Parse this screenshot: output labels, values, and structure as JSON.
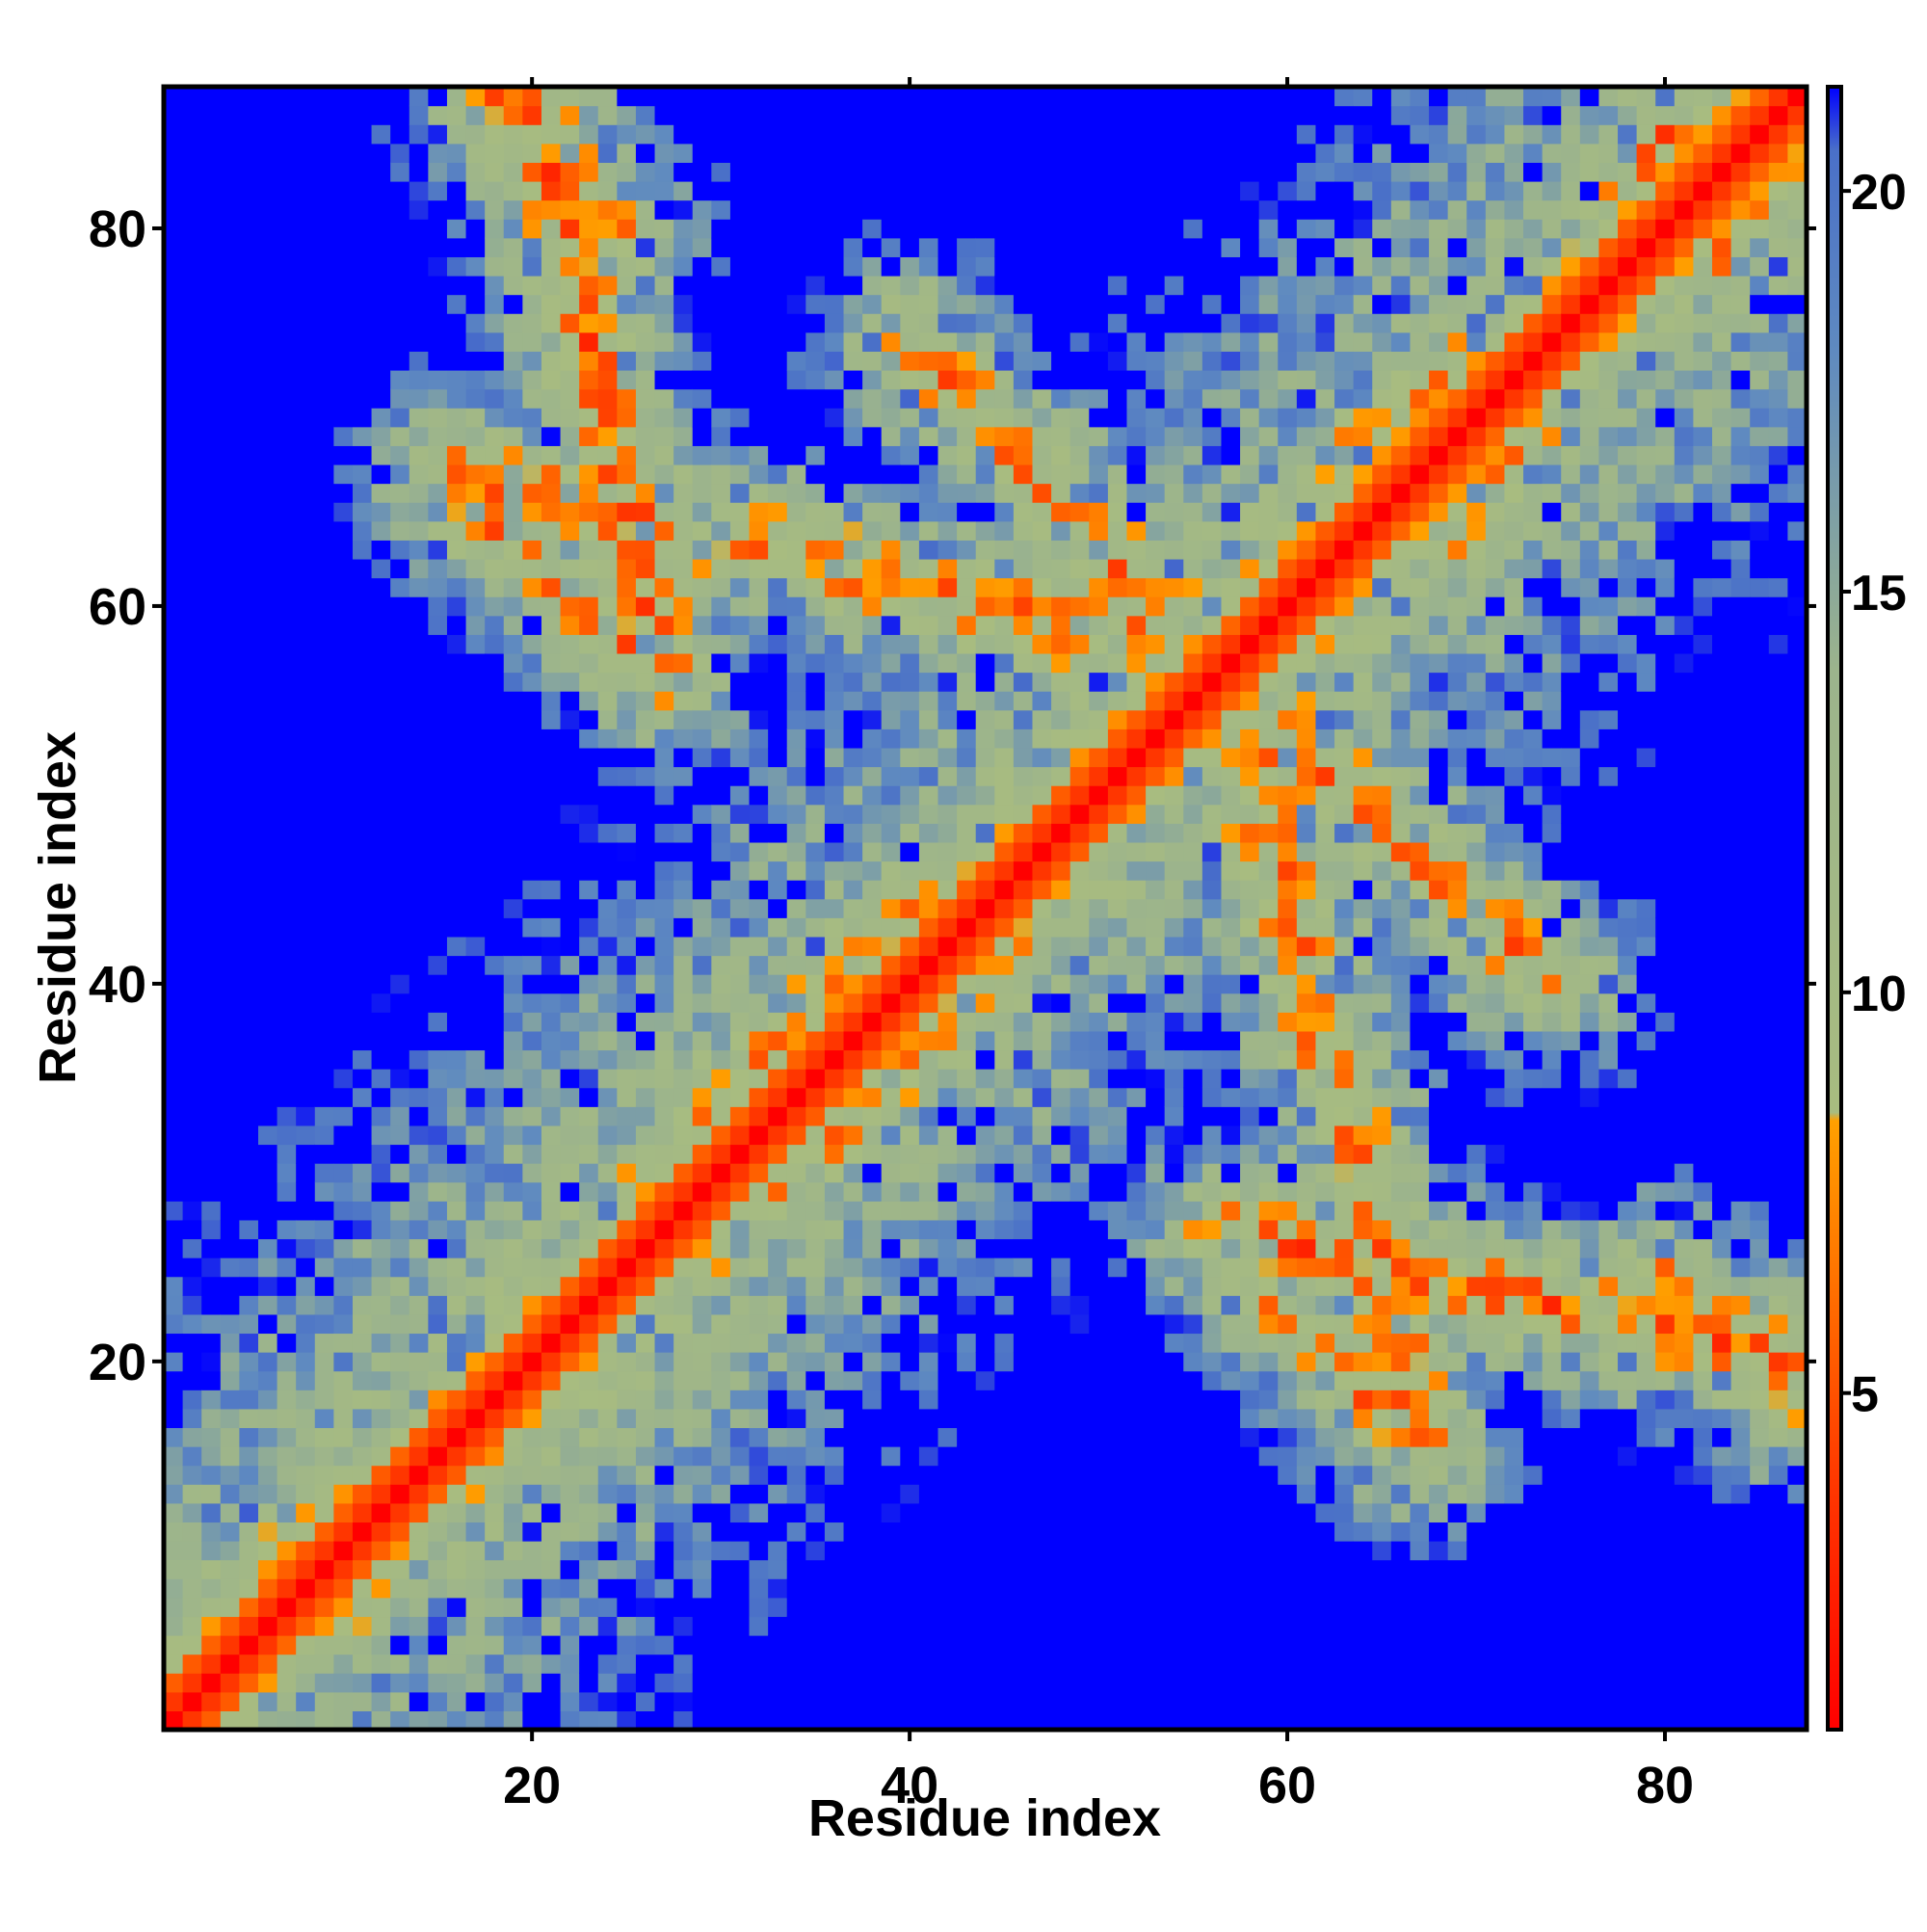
{
  "chart_data": {
    "type": "heatmap",
    "title": "",
    "xlabel": "Residue index",
    "ylabel": "Residue index",
    "n_residues": 87,
    "xlim": [
      1,
      87
    ],
    "ylim": [
      1,
      87
    ],
    "x_ticks": [
      20,
      40,
      60,
      80
    ],
    "y_ticks": [
      20,
      40,
      60,
      80
    ],
    "x_tick_labels": [
      "20",
      "40",
      "60",
      "80"
    ],
    "y_tick_labels": [
      "20",
      "40",
      "60",
      "80"
    ],
    "value_description": "pairwise residue distance map, symmetric about the diagonal",
    "colorbar": {
      "min": 0.8,
      "max": 21.3,
      "ticks": [
        5,
        10,
        15,
        20
      ],
      "tick_labels": [
        "5",
        "10",
        "15",
        "20"
      ],
      "stops": [
        {
          "value": 0.8,
          "color": "#ff0000"
        },
        {
          "value": 4.0,
          "color": "#ff3a00"
        },
        {
          "value": 8.4,
          "color": "#ffa000"
        },
        {
          "value": 8.5,
          "color": "#a8bc80"
        },
        {
          "value": 14.0,
          "color": "#9cb48c"
        },
        {
          "value": 18.0,
          "color": "#5f8ac0"
        },
        {
          "value": 20.5,
          "color": "#4a70c8"
        },
        {
          "value": 21.3,
          "color": "#0000ff"
        }
      ]
    },
    "features": [
      {
        "kind": "diagonal",
        "from": 1,
        "to": 87,
        "distance": 3.8
      },
      {
        "kind": "antiparallel_band",
        "i_range": [
          20,
          27
        ],
        "j_range": [
          87,
          57
        ],
        "distance": 6
      },
      {
        "kind": "antiparallel_band",
        "i_range": [
          16,
          27
        ],
        "j_range": [
          66,
          56
        ],
        "distance": 7
      },
      {
        "kind": "antiparallel_band",
        "i_range": [
          40,
          56
        ],
        "j_range": [
          74,
          57
        ],
        "distance": 6.5
      },
      {
        "kind": "antiparallel_band",
        "i_range": [
          57,
          67
        ],
        "j_range": [
          57,
          16
        ],
        "distance": 6
      },
      {
        "kind": "antiparallel_band",
        "i_range": [
          80,
          87
        ],
        "j_range": [
          24,
          18
        ],
        "distance": 6
      },
      {
        "kind": "parallel_band",
        "i_range": [
          27,
          42
        ],
        "j_range": [
          30,
          45
        ],
        "distance": 6
      },
      {
        "kind": "parallel_band",
        "i_range": [
          64,
          85
        ],
        "j_range": [
          70,
          80
        ],
        "distance": 6.5
      }
    ]
  }
}
